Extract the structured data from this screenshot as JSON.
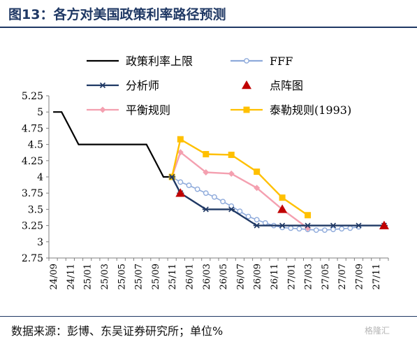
{
  "title": "图13：各方对美国政策利率路径预测",
  "source": "数据来源：彭博、东吴证券研究所；单位%",
  "watermark": "格隆汇",
  "chart_data": {
    "type": "line",
    "categories": [
      "24/09",
      "24/10",
      "24/11",
      "24/12",
      "25/01",
      "25/02",
      "25/03",
      "25/04",
      "25/05",
      "25/06",
      "25/07",
      "25/08",
      "25/09",
      "25/10",
      "25/11",
      "25/12",
      "26/01",
      "26/02",
      "26/03",
      "26/04",
      "26/05",
      "26/06",
      "26/07",
      "26/08",
      "26/09",
      "26/10",
      "26/11",
      "26/12",
      "27/01",
      "27/02",
      "27/03",
      "27/04",
      "27/05",
      "27/06",
      "27/07",
      "27/08",
      "27/09",
      "27/10",
      "27/11",
      "27/12"
    ],
    "tick_labels": [
      "24/09",
      "24/11",
      "25/01",
      "25/03",
      "25/05",
      "25/07",
      "25/09",
      "25/11",
      "26/01",
      "26/03",
      "26/05",
      "26/07",
      "26/09",
      "26/11",
      "27/01",
      "27/03",
      "27/05",
      "27/07",
      "27/09",
      "27/11"
    ],
    "y_ticks": [
      "2.75",
      "3",
      "3.25",
      "3.5",
      "3.75",
      "4",
      "4.25",
      "4.5",
      "4.75",
      "5",
      "5.25"
    ],
    "ylim": [
      2.75,
      5.25
    ],
    "series": [
      {
        "name": "政策利率上限",
        "color": "#000000",
        "marker": "none",
        "x": [
          "24/09",
          "24/10",
          "24/11",
          "24/12",
          "25/01",
          "25/02",
          "25/03",
          "25/04",
          "25/05",
          "25/06",
          "25/07",
          "25/08",
          "25/09",
          "25/10",
          "25/11"
        ],
        "values": [
          5,
          5,
          4.75,
          4.5,
          4.5,
          4.5,
          4.5,
          4.5,
          4.5,
          4.5,
          4.5,
          4.5,
          4.25,
          4,
          4
        ]
      },
      {
        "name": "FFF",
        "color": "#8eaadb",
        "marker": "hollow-circle",
        "x": [
          "25/11",
          "25/12",
          "26/01",
          "26/02",
          "26/03",
          "26/04",
          "26/05",
          "26/06",
          "26/07",
          "26/08",
          "26/09",
          "26/10",
          "26/11",
          "26/12",
          "27/01",
          "27/02",
          "27/03",
          "27/04",
          "27/05",
          "27/06",
          "27/07",
          "27/08",
          "27/09"
        ],
        "values": [
          4.0,
          3.92,
          3.87,
          3.81,
          3.75,
          3.69,
          3.62,
          3.55,
          3.47,
          3.39,
          3.34,
          3.29,
          3.25,
          3.22,
          3.21,
          3.2,
          3.19,
          3.18,
          3.18,
          3.19,
          3.2,
          3.21,
          3.23
        ]
      },
      {
        "name": "分析师",
        "color": "#1f3864",
        "marker": "asterisk",
        "x": [
          "25/11",
          "25/12",
          "26/03",
          "26/06",
          "26/09",
          "26/12",
          "27/03",
          "27/06",
          "27/09",
          "27/12"
        ],
        "values": [
          4.0,
          3.75,
          3.5,
          3.5,
          3.25,
          3.25,
          3.25,
          3.25,
          3.25,
          3.25
        ]
      },
      {
        "name": "点阵图",
        "color": "#c00000",
        "marker": "triangle",
        "x": [
          "25/12",
          "26/12",
          "27/12"
        ],
        "values": [
          3.75,
          3.5,
          3.25
        ]
      },
      {
        "name": "平衡规则",
        "color": "#f4a0b0",
        "marker": "diamond",
        "x": [
          "25/11",
          "25/12",
          "26/03",
          "26/06",
          "26/09",
          "26/12",
          "27/03"
        ],
        "values": [
          4.0,
          4.38,
          4.07,
          4.05,
          3.83,
          3.5,
          3.21
        ]
      },
      {
        "name": "泰勒规则(1993)",
        "color": "#ffc000",
        "marker": "square",
        "x": [
          "25/11",
          "25/12",
          "26/03",
          "26/06",
          "26/09",
          "26/12",
          "27/03"
        ],
        "values": [
          4.0,
          4.58,
          4.35,
          4.34,
          4.08,
          3.68,
          3.41
        ]
      }
    ],
    "legend": {
      "placement": "top",
      "columns": 2
    },
    "grid": false
  }
}
